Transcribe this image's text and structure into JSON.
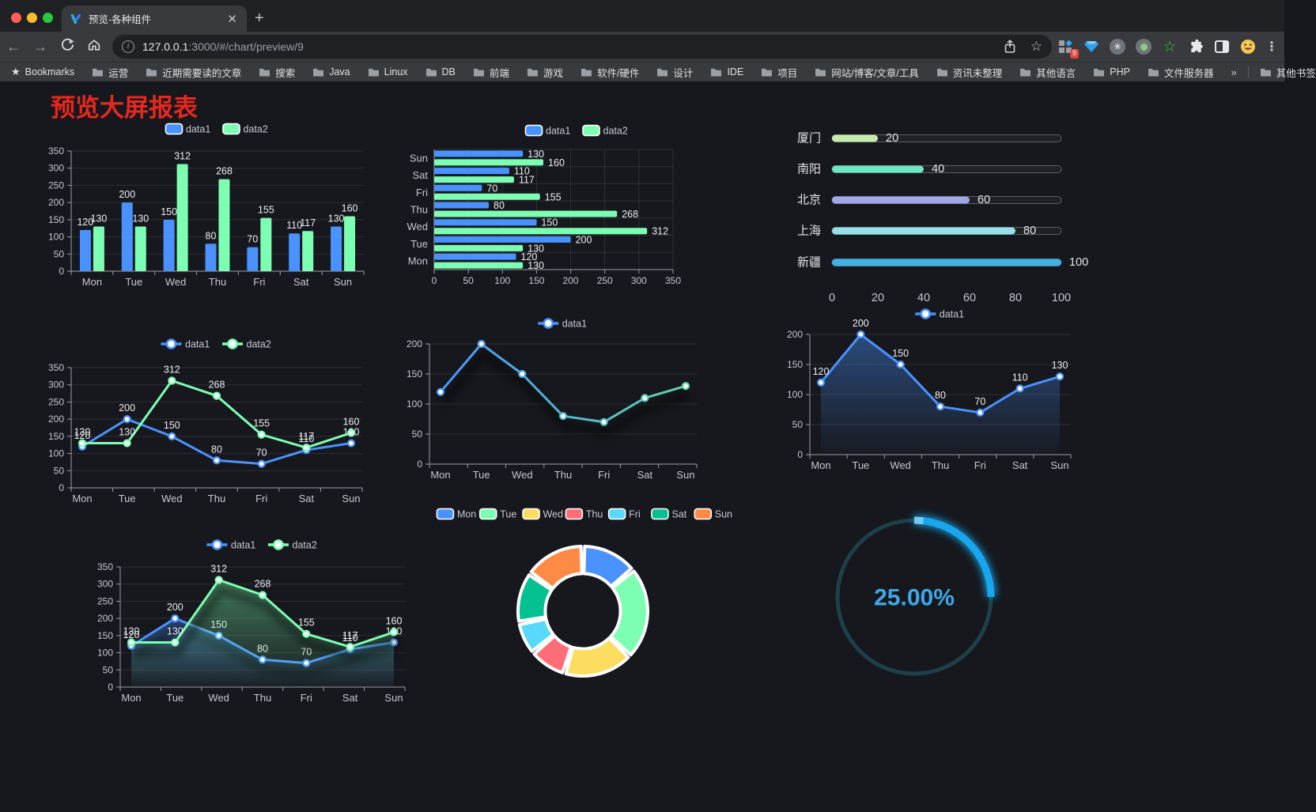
{
  "browser": {
    "window_controls": [
      "close",
      "minimize",
      "zoom"
    ],
    "tab": {
      "title": "预览-各种组件"
    },
    "url": {
      "host": "127.0.0.1",
      "rest": ":3000/#/chart/preview/9"
    },
    "toolbar_icons": [
      "back-icon",
      "forward-icon",
      "reload-icon",
      "home-icon",
      "info-icon",
      "share-icon",
      "bookmark-star-icon",
      "menu-kebab-icon"
    ],
    "extensions": [
      {
        "name": "grid-extension",
        "badge": "9"
      },
      {
        "name": "gem-extension"
      },
      {
        "name": "asterisk-extension"
      },
      {
        "name": "record-extension"
      },
      {
        "name": "star-extension"
      },
      {
        "name": "puzzle-extension"
      },
      {
        "name": "sidebar-extension"
      },
      {
        "name": "emoji-extension"
      }
    ],
    "bookmarks_bar": {
      "label": "Bookmarks",
      "folders": [
        "运营",
        "近期需要读的文章",
        "搜索",
        "Java",
        "Linux",
        "DB",
        "前端",
        "游戏",
        "软件/硬件",
        "设计",
        "IDE",
        "项目",
        "网站/博客/文章/工具",
        "资讯未整理",
        "其他语言",
        "PHP",
        "文件服务器"
      ],
      "overflow": "»",
      "other_bookmarks": "其他书签"
    }
  },
  "page": {
    "title": "预览大屏报表",
    "title_color": "#e8281e",
    "background": "#17181d"
  },
  "chart_data": [
    {
      "id": "bar-chart",
      "type": "bar",
      "categories": [
        "Mon",
        "Tue",
        "Wed",
        "Thu",
        "Fri",
        "Sat",
        "Sun"
      ],
      "series": [
        {
          "name": "data1",
          "color": "#4992ff",
          "values": [
            120,
            200,
            150,
            80,
            70,
            110,
            130
          ]
        },
        {
          "name": "data2",
          "color": "#7cffb2",
          "values": [
            130,
            130,
            312,
            268,
            155,
            117,
            160
          ]
        }
      ],
      "ylim": [
        0,
        350
      ],
      "yticks": [
        0,
        50,
        100,
        150,
        200,
        250,
        300,
        350
      ],
      "legend_position": "top",
      "grid": true,
      "point_labels": true
    },
    {
      "id": "hbar-chart",
      "type": "bar-horizontal",
      "categories": [
        "Mon",
        "Tue",
        "Wed",
        "Thu",
        "Fri",
        "Sat",
        "Sun"
      ],
      "display_order": "Sun at top, Mon at bottom",
      "series": [
        {
          "name": "data1",
          "color": "#4992ff",
          "values": [
            120,
            200,
            150,
            80,
            70,
            110,
            130
          ]
        },
        {
          "name": "data2",
          "color": "#7cffb2",
          "values": [
            130,
            130,
            312,
            268,
            155,
            117,
            160
          ]
        }
      ],
      "xlim": [
        0,
        350
      ],
      "xticks": [
        0,
        50,
        100,
        150,
        200,
        250,
        300,
        350
      ],
      "legend_position": "top",
      "grid": true,
      "point_labels": true
    },
    {
      "id": "progress-chart",
      "type": "bar-horizontal",
      "items": [
        {
          "label": "厦门",
          "value": 20,
          "color": "#c4ebad"
        },
        {
          "label": "南阳",
          "value": 40,
          "color": "#6be6c1"
        },
        {
          "label": "北京",
          "value": 60,
          "color": "#a0a7e6"
        },
        {
          "label": "上海",
          "value": 80,
          "color": "#96dee8"
        },
        {
          "label": "新疆",
          "value": 100,
          "color": "#3fb1e3"
        }
      ],
      "xlim": [
        0,
        100
      ],
      "xticks": [
        0,
        20,
        40,
        60,
        80,
        100
      ],
      "point_labels": true
    },
    {
      "id": "line2-chart",
      "type": "line",
      "categories": [
        "Mon",
        "Tue",
        "Wed",
        "Thu",
        "Fri",
        "Sat",
        "Sun"
      ],
      "series": [
        {
          "name": "data1",
          "color": "#4992ff",
          "values": [
            120,
            200,
            150,
            80,
            70,
            110,
            130
          ]
        },
        {
          "name": "data2",
          "color": "#7cffb2",
          "values": [
            130,
            130,
            312,
            268,
            155,
            117,
            160
          ]
        }
      ],
      "ylim": [
        0,
        350
      ],
      "yticks": [
        0,
        50,
        100,
        150,
        200,
        250,
        300,
        350
      ],
      "legend_position": "top",
      "point_labels": true
    },
    {
      "id": "gradline-chart",
      "type": "line",
      "categories": [
        "Mon",
        "Tue",
        "Wed",
        "Thu",
        "Fri",
        "Sat",
        "Sun"
      ],
      "series": [
        {
          "name": "data1",
          "color": "#4992ff",
          "gradient": [
            "#4992ff",
            "#5fd6a2"
          ],
          "values": [
            120,
            200,
            150,
            80,
            70,
            110,
            130
          ]
        }
      ],
      "ylim": [
        0,
        200
      ],
      "yticks": [
        0,
        50,
        100,
        150,
        200
      ],
      "legend_position": "top",
      "point_labels": false,
      "shadow": true
    },
    {
      "id": "area1-chart",
      "type": "area",
      "categories": [
        "Mon",
        "Tue",
        "Wed",
        "Thu",
        "Fri",
        "Sat",
        "Sun"
      ],
      "series": [
        {
          "name": "data1",
          "color": "#4992ff",
          "values": [
            120,
            200,
            150,
            80,
            70,
            110,
            130
          ]
        }
      ],
      "ylim": [
        0,
        200
      ],
      "yticks": [
        0,
        50,
        100,
        150,
        200
      ],
      "legend_position": "top",
      "point_labels": true
    },
    {
      "id": "area2-chart",
      "type": "area",
      "categories": [
        "Mon",
        "Tue",
        "Wed",
        "Thu",
        "Fri",
        "Sat",
        "Sun"
      ],
      "series": [
        {
          "name": "data1",
          "color": "#4992ff",
          "values": [
            120,
            200,
            150,
            80,
            70,
            110,
            130
          ]
        },
        {
          "name": "data2",
          "color": "#7cffb2",
          "values": [
            130,
            130,
            312,
            268,
            155,
            117,
            160
          ]
        }
      ],
      "ylim": [
        0,
        350
      ],
      "yticks": [
        0,
        50,
        100,
        150,
        200,
        250,
        300,
        350
      ],
      "legend_position": "top",
      "point_labels": true,
      "shadow": true
    },
    {
      "id": "donut-chart",
      "type": "pie",
      "items": [
        {
          "name": "Mon",
          "value": 120,
          "color": "#4992ff"
        },
        {
          "name": "Tue",
          "value": 200,
          "color": "#7cffb2"
        },
        {
          "name": "Wed",
          "value": 150,
          "color": "#fddd60"
        },
        {
          "name": "Thu",
          "value": 80,
          "color": "#ff6e76"
        },
        {
          "name": "Fri",
          "value": 70,
          "color": "#58d9f9"
        },
        {
          "name": "Sat",
          "value": 110,
          "color": "#05c091"
        },
        {
          "name": "Sun",
          "value": 130,
          "color": "#ff8a45"
        }
      ],
      "inner_radius_ratio": 0.58,
      "legend_position": "top",
      "border_color": "#ffffff"
    },
    {
      "id": "gauge-chart",
      "type": "gauge",
      "value": 25,
      "max": 100,
      "label": "25.00%",
      "arc_color": "#18a6ee",
      "track_color": "#1d4049",
      "text_color": "#3da8e8"
    }
  ],
  "style": {
    "axis_color": "#9b9caa",
    "tick_label_color": "#c6c7d1",
    "value_label_color": "#eceef2",
    "grid_color": "rgba(255,255,255,0.10)",
    "legend_text_color": "#c8c9d3"
  }
}
